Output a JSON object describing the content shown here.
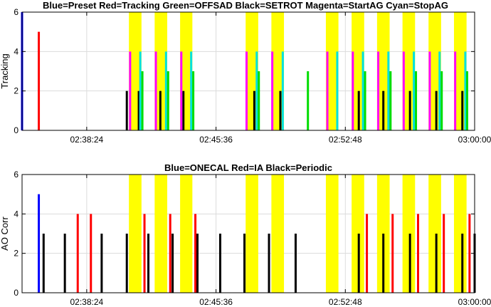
{
  "chart_data": [
    {
      "type": "bar",
      "title": "Blue=Preset Red=Tracking Green=OFFSAD Black=SETROT Magenta=StartAG Cyan=StopAG",
      "ylabel": "Tracking",
      "xlabel": "",
      "xlim": [
        "02:34:48",
        "03:00:00"
      ],
      "ylim": [
        0,
        6
      ],
      "xticks": [
        "02:38:24",
        "02:45:36",
        "02:52:48",
        "03:00:00"
      ],
      "yticks": [
        "0",
        "2",
        "4",
        "6"
      ],
      "grid": true,
      "highlight_bands": [
        [
          "02:40:45",
          "02:41:27"
        ],
        [
          "02:42:11",
          "02:42:53"
        ],
        [
          "02:43:36",
          "02:44:17"
        ],
        [
          "02:47:15",
          "02:47:57"
        ],
        [
          "02:48:41",
          "02:49:23"
        ],
        [
          "02:51:43",
          "02:52:25"
        ],
        [
          "02:53:09",
          "02:53:51"
        ],
        [
          "02:54:34",
          "02:55:16"
        ],
        [
          "02:55:59",
          "02:56:41"
        ],
        [
          "02:57:26",
          "02:58:08"
        ],
        [
          "02:58:51",
          "02:59:33"
        ]
      ],
      "series": [
        {
          "color": "#0000ff",
          "x": [
            "02:34:48"
          ],
          "values": [
            6
          ]
        },
        {
          "color": "#ff0000",
          "x": [
            "02:35:44"
          ],
          "values": [
            5
          ]
        },
        {
          "color": "#000000",
          "x": [
            "02:40:38",
            "02:41:18",
            "02:42:30",
            "02:43:47",
            "02:47:44",
            "02:49:11",
            "02:53:33",
            "02:54:55",
            "02:56:24",
            "02:57:52",
            "02:59:19"
          ],
          "values": [
            2,
            2,
            2,
            2,
            2,
            2,
            2,
            2,
            2,
            2,
            2
          ]
        },
        {
          "color": "#ff00ff",
          "x": [
            "02:40:49",
            "02:42:15",
            "02:43:40",
            "02:47:18",
            "02:48:44",
            "02:51:48",
            "02:53:13",
            "02:54:38",
            "02:56:03",
            "02:57:30",
            "02:58:55"
          ],
          "values": [
            4,
            4,
            4,
            4,
            4,
            4,
            4,
            4,
            4,
            4,
            4
          ]
        },
        {
          "color": "#00e0e0",
          "x": [
            "02:41:23",
            "02:42:49",
            "02:44:13",
            "02:47:52",
            "02:49:19",
            "02:52:21",
            "02:53:47",
            "02:55:12",
            "02:56:37",
            "02:58:03",
            "02:59:29"
          ],
          "values": [
            4,
            4,
            4,
            4,
            4,
            4,
            4,
            4,
            4,
            4,
            4
          ]
        },
        {
          "color": "#00dd00",
          "x": [
            "02:41:30",
            "02:42:56",
            "02:44:20",
            "02:47:59",
            "02:50:43",
            "02:53:54",
            "02:55:19",
            "02:56:44",
            "02:58:10",
            "02:59:35"
          ],
          "values": [
            3,
            3,
            3,
            3,
            3,
            3,
            3,
            3,
            3,
            3
          ]
        }
      ]
    },
    {
      "type": "bar",
      "title": "Blue=ONECAL Red=IA Black=Periodic",
      "ylabel": "AO Corr",
      "xlabel": "",
      "xlim": [
        "02:34:48",
        "03:00:00"
      ],
      "ylim": [
        0,
        6
      ],
      "xticks": [
        "02:38:24",
        "02:45:36",
        "02:52:48",
        "03:00:00"
      ],
      "yticks": [
        "0",
        "2",
        "4",
        "6"
      ],
      "grid": true,
      "highlight_bands": [
        [
          "02:40:45",
          "02:41:27"
        ],
        [
          "02:42:11",
          "02:42:53"
        ],
        [
          "02:43:36",
          "02:44:17"
        ],
        [
          "02:47:15",
          "02:47:57"
        ],
        [
          "02:48:41",
          "02:49:23"
        ],
        [
          "02:51:43",
          "02:52:25"
        ],
        [
          "02:53:09",
          "02:53:51"
        ],
        [
          "02:54:34",
          "02:55:16"
        ],
        [
          "02:55:59",
          "02:56:41"
        ],
        [
          "02:57:26",
          "02:58:08"
        ],
        [
          "02:58:51",
          "02:59:33"
        ]
      ],
      "series": [
        {
          "color": "#0000ff",
          "x": [
            "02:35:44"
          ],
          "values": [
            5
          ]
        },
        {
          "color": "#ff0000",
          "x": [
            "02:37:54",
            "02:38:38",
            "02:41:37",
            "02:43:03",
            "02:44:27",
            "02:54:00",
            "02:55:26",
            "02:56:51",
            "02:58:17",
            "02:59:43"
          ],
          "values": [
            4,
            4,
            4,
            4,
            4,
            4,
            4,
            4,
            4,
            4
          ]
        },
        {
          "color": "#000000",
          "x": [
            "02:36:00",
            "02:37:11",
            "02:39:14",
            "02:40:38",
            "02:41:50",
            "02:43:11",
            "02:44:34",
            "02:45:50",
            "02:47:11",
            "02:48:33",
            "02:50:02",
            "02:53:33",
            "02:54:55",
            "02:56:24",
            "02:57:52",
            "02:59:19",
            "03:00:00"
          ],
          "values": [
            3,
            3,
            3,
            3,
            3,
            3,
            3,
            3,
            3,
            3,
            3,
            3,
            3,
            3,
            3,
            3,
            3
          ]
        }
      ]
    }
  ]
}
